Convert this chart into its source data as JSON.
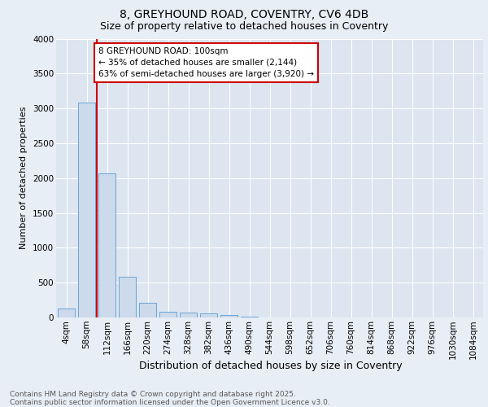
{
  "title_line1": "8, GREYHOUND ROAD, COVENTRY, CV6 4DB",
  "title_line2": "Size of property relative to detached houses in Coventry",
  "xlabel": "Distribution of detached houses by size in Coventry",
  "ylabel": "Number of detached properties",
  "bar_color": "#ccdaeb",
  "bar_edge_color": "#5b9bd5",
  "bg_color": "#e8eef5",
  "plot_bg_color": "#dce5f0",
  "grid_color": "#ffffff",
  "vline_color": "#cc0000",
  "annotation_text": "8 GREYHOUND ROAD: 100sqm\n← 35% of detached houses are smaller (2,144)\n63% of semi-detached houses are larger (3,920) →",
  "footer_text": "Contains HM Land Registry data © Crown copyright and database right 2025.\nContains public sector information licensed under the Open Government Licence v3.0.",
  "categories": [
    "4sqm",
    "58sqm",
    "112sqm",
    "166sqm",
    "220sqm",
    "274sqm",
    "328sqm",
    "382sqm",
    "436sqm",
    "490sqm",
    "544sqm",
    "598sqm",
    "652sqm",
    "706sqm",
    "760sqm",
    "814sqm",
    "868sqm",
    "922sqm",
    "976sqm",
    "1030sqm",
    "1084sqm"
  ],
  "values": [
    130,
    3080,
    2070,
    580,
    210,
    80,
    65,
    55,
    40,
    10,
    0,
    0,
    0,
    0,
    0,
    0,
    0,
    0,
    0,
    0,
    0
  ],
  "ylim": [
    0,
    4000
  ],
  "yticks": [
    0,
    500,
    1000,
    1500,
    2000,
    2500,
    3000,
    3500,
    4000
  ],
  "vline_x_index": 1.5,
  "title1_fontsize": 10,
  "title2_fontsize": 9,
  "ylabel_fontsize": 8,
  "xlabel_fontsize": 9,
  "tick_fontsize": 7.5,
  "annotation_fontsize": 7.5,
  "footer_fontsize": 6.5
}
